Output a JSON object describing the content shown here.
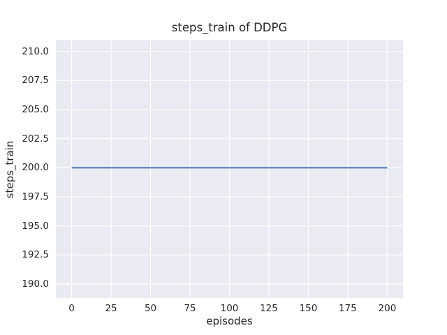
{
  "chart_data": {
    "type": "line",
    "title": "steps_train of DDPG",
    "xlabel": "episodes",
    "ylabel": "steps_train",
    "xlim": [
      -10,
      210
    ],
    "ylim": [
      188.8,
      211.0
    ],
    "x_ticks": [
      0,
      25,
      50,
      75,
      100,
      125,
      150,
      175,
      200
    ],
    "x_tick_labels": [
      "0",
      "25",
      "50",
      "75",
      "100",
      "125",
      "150",
      "175",
      "200"
    ],
    "y_ticks": [
      190,
      192.5,
      195,
      197.5,
      200,
      202.5,
      205,
      207.5,
      210
    ],
    "y_tick_labels": [
      "190.0",
      "192.5",
      "195.0",
      "197.5",
      "200.0",
      "202.5",
      "205.0",
      "207.5",
      "210.0"
    ],
    "grid": true,
    "legend": "none",
    "style": {
      "figure_bg": "#ffffff",
      "axes_bg": "#eaeaf2",
      "grid_color": "#ffffff",
      "text_color": "#262626",
      "line_color": "#4c72b0"
    },
    "series": [
      {
        "name": "steps_train",
        "color": "#4c72b0",
        "x": [
          0,
          200
        ],
        "y": [
          200,
          200
        ]
      }
    ]
  }
}
